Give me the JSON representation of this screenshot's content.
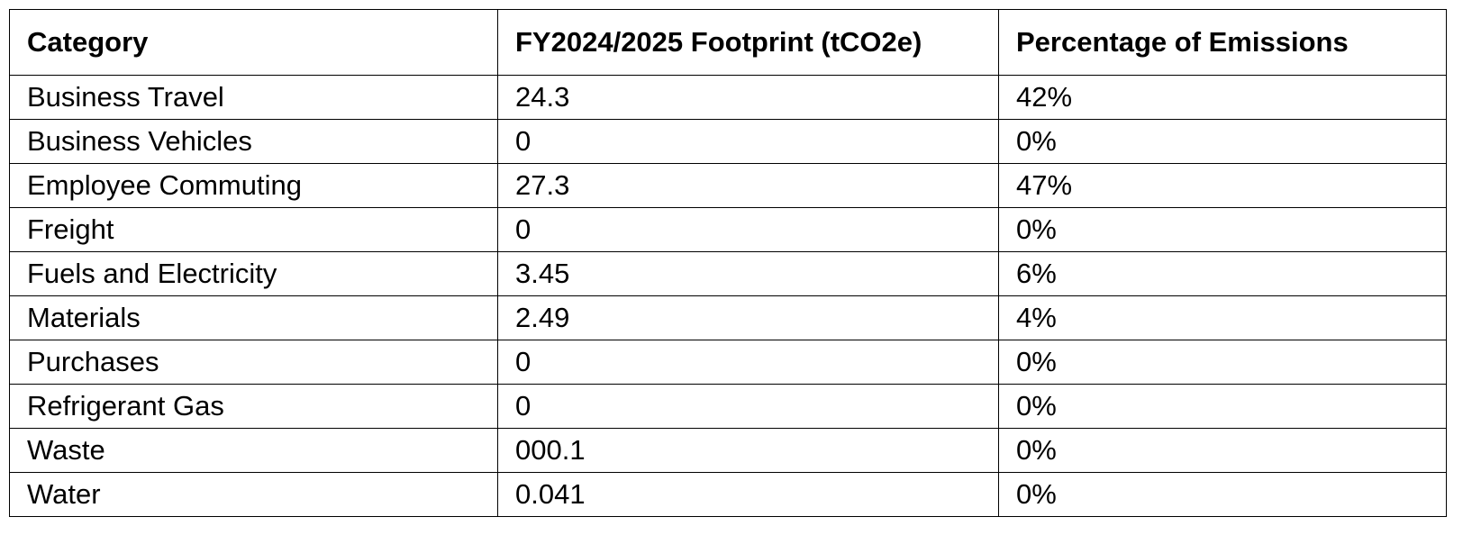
{
  "table": {
    "headers": [
      "Category",
      "FY2024/2025 Footprint (tCO2e)",
      "Percentage of Emissions"
    ],
    "rows": [
      [
        "Business Travel",
        "24.3",
        "42%"
      ],
      [
        "Business Vehicles",
        "0",
        "0%"
      ],
      [
        "Employee Commuting",
        "27.3",
        "47%"
      ],
      [
        "Freight",
        "0",
        "0%"
      ],
      [
        "Fuels and Electricity",
        "3.45",
        "6%"
      ],
      [
        "Materials",
        "2.49",
        "4%"
      ],
      [
        "Purchases",
        "0",
        "0%"
      ],
      [
        "Refrigerant Gas",
        "0",
        "0%"
      ],
      [
        "Waste",
        "000.1",
        "0%"
      ],
      [
        "Water",
        "0.041",
        "0%"
      ]
    ]
  }
}
